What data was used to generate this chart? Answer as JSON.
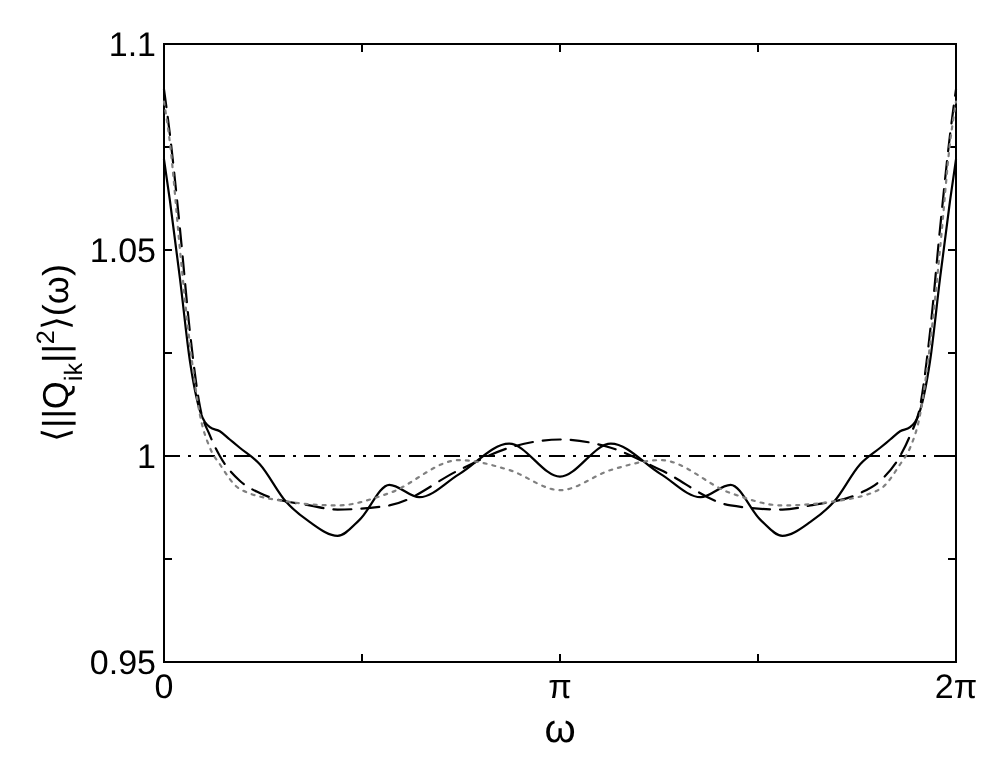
{
  "chart_data": {
    "type": "line",
    "xlabel": "ω",
    "ylabel": "⟨||Q$_{ik}$||$^{2}$⟩(ω)",
    "xlim": [
      0,
      6.2832
    ],
    "ylim": [
      0.95,
      1.1
    ],
    "xticks": [
      {
        "value": 0,
        "label": "0"
      },
      {
        "value": 1.5708,
        "label": null
      },
      {
        "value": 3.1416,
        "label": "π"
      },
      {
        "value": 4.7124,
        "label": null
      },
      {
        "value": 6.2832,
        "label": "2π"
      }
    ],
    "yticks": [
      0.95,
      {
        "value": 0.975,
        "label": null
      },
      1,
      {
        "value": 1.025,
        "label": null
      },
      1.05,
      {
        "value": 1.075,
        "label": null
      },
      1.1
    ],
    "grid": false,
    "marker": "none",
    "ref_lines": [
      {
        "axis": "y",
        "value": 1,
        "label": null,
        "color": "#000000",
        "line_style": "dashdot"
      }
    ],
    "series": [
      {
        "color": "#000000",
        "line_style": "solid",
        "x": [
          0,
          0.047,
          0.127,
          0.206,
          0.285,
          0.364,
          0.443,
          0.522,
          0.601,
          0.76,
          0.965,
          1.155,
          1.377,
          1.551,
          1.788,
          2.026,
          2.342,
          2.738,
          3.1416,
          3.545,
          3.941,
          4.257,
          4.495,
          4.732,
          4.906,
          5.128,
          5.318,
          5.523,
          5.682,
          5.761,
          5.84,
          5.919,
          5.998,
          6.077,
          6.156,
          6.236,
          6.2832
        ],
        "values": [
          1.072,
          1.062,
          1.043,
          1.023,
          1.011,
          1.007,
          1.006,
          1.004,
          1.002,
          0.998,
          0.989,
          0.984,
          0.9806,
          0.9845,
          0.993,
          0.99,
          0.9956,
          1.003,
          0.995,
          1.003,
          0.9956,
          0.99,
          0.993,
          0.9845,
          0.9806,
          0.984,
          0.989,
          0.998,
          1.002,
          1.004,
          1.006,
          1.007,
          1.011,
          1.023,
          1.043,
          1.062,
          1.072
        ]
      },
      {
        "color": "#000000",
        "line_style": "dashed",
        "x": [
          0,
          0.047,
          0.127,
          0.206,
          0.285,
          0.364,
          0.443,
          0.601,
          0.76,
          1.155,
          1.377,
          1.788,
          2.342,
          2.738,
          3.1416,
          3.545,
          3.941,
          4.495,
          4.906,
          5.128,
          5.523,
          5.682,
          5.84,
          5.919,
          5.998,
          6.077,
          6.156,
          6.236,
          6.2832
        ],
        "values": [
          1.089,
          1.078,
          1.055,
          1.03,
          1.012,
          1.005,
          1.0,
          0.994,
          0.991,
          0.988,
          0.987,
          0.988,
          0.9966,
          1.002,
          1.004,
          1.002,
          0.9966,
          0.988,
          0.987,
          0.988,
          0.991,
          0.994,
          1.0,
          1.005,
          1.012,
          1.03,
          1.055,
          1.078,
          1.089
        ]
      },
      {
        "color": "#808080",
        "line_style": "dotted",
        "x": [
          0,
          0.047,
          0.127,
          0.206,
          0.285,
          0.364,
          0.443,
          0.601,
          0.965,
          1.377,
          1.788,
          2.342,
          2.738,
          3.1416,
          3.545,
          3.941,
          4.495,
          4.906,
          5.318,
          5.682,
          5.84,
          5.919,
          5.998,
          6.077,
          6.156,
          6.236,
          6.2832
        ],
        "values": [
          1.086,
          1.076,
          1.05,
          1.027,
          1.01,
          1.002,
          0.998,
          0.992,
          0.989,
          0.988,
          0.991,
          0.999,
          0.9966,
          0.9917,
          0.9966,
          0.999,
          0.991,
          0.988,
          0.989,
          0.992,
          0.998,
          1.002,
          1.01,
          1.027,
          1.05,
          1.076,
          1.086
        ]
      }
    ]
  }
}
